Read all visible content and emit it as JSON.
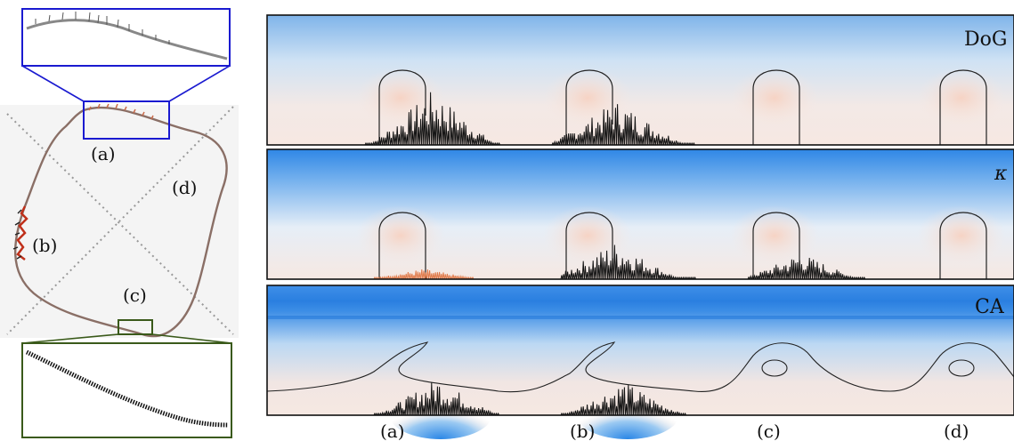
{
  "left_panel": {
    "labels": [
      "(a)",
      "(b)",
      "(c)",
      "(d)"
    ]
  },
  "right_panel": {
    "rows": [
      {
        "label": "DoG"
      },
      {
        "label": "κ"
      },
      {
        "label": "CA"
      }
    ],
    "column_labels": [
      "(a)",
      "(b)",
      "(c)",
      "(d)"
    ]
  },
  "colors": {
    "zoom_top_box": "#1a1ad0",
    "zoom_bottom_box": "#3a5a1a",
    "field_blue": "#2a7fe0",
    "field_pink": "#f3d9cf",
    "background_panel": "#f4f4f4"
  }
}
